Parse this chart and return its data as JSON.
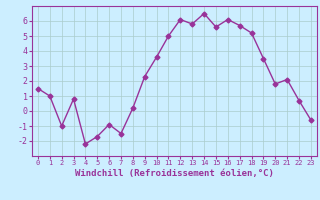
{
  "x": [
    0,
    1,
    2,
    3,
    4,
    5,
    6,
    7,
    8,
    9,
    10,
    11,
    12,
    13,
    14,
    15,
    16,
    17,
    18,
    19,
    20,
    21,
    22,
    23
  ],
  "y": [
    1.5,
    1.0,
    -1.0,
    0.8,
    -2.2,
    -1.7,
    -0.9,
    -1.5,
    0.2,
    2.3,
    3.6,
    5.0,
    6.1,
    5.8,
    6.5,
    5.6,
    6.1,
    5.7,
    5.2,
    3.5,
    1.8,
    2.1,
    0.7,
    -0.6
  ],
  "line_color": "#993399",
  "marker": "D",
  "markersize": 2.5,
  "linewidth": 1.0,
  "xlabel": "Windchill (Refroidissement éolien,°C)",
  "xlabel_fontsize": 6.5,
  "ylim": [
    -3,
    7
  ],
  "xlim": [
    -0.5,
    23.5
  ],
  "yticks": [
    -2,
    -1,
    0,
    1,
    2,
    3,
    4,
    5,
    6
  ],
  "xticks": [
    0,
    1,
    2,
    3,
    4,
    5,
    6,
    7,
    8,
    9,
    10,
    11,
    12,
    13,
    14,
    15,
    16,
    17,
    18,
    19,
    20,
    21,
    22,
    23
  ],
  "bg_color": "#cceeff",
  "grid_color": "#aacccc",
  "tick_label_color": "#993399",
  "axis_color": "#993399"
}
